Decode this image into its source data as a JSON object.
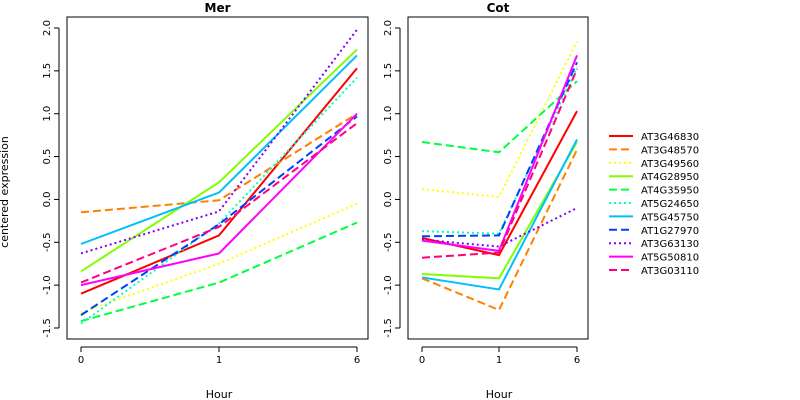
{
  "chart_data": {
    "type": "line",
    "ylabel": "centered expression",
    "xlabel": "Hour",
    "x_ticks": [
      "0",
      "1",
      "6"
    ],
    "ylim": [
      -1.5,
      2.0
    ],
    "y_ticks": [
      "-1.5",
      "-1.0",
      "-0.5",
      "0.0",
      "0.5",
      "1.0",
      "1.5",
      "2.0"
    ],
    "grid": false,
    "legend_position": "right",
    "series_styles": [
      {
        "name": "AT3G46830",
        "color": "#ff0000",
        "dash": "solid"
      },
      {
        "name": "AT3G48570",
        "color": "#ff8000",
        "dash": "dashed"
      },
      {
        "name": "AT3G49560",
        "color": "#ffff00",
        "dash": "dotted"
      },
      {
        "name": "AT4G28950",
        "color": "#80ff00",
        "dash": "solid"
      },
      {
        "name": "AT4G35950",
        "color": "#00ff40",
        "dash": "dashed"
      },
      {
        "name": "AT5G24650",
        "color": "#00ffbf",
        "dash": "dotted"
      },
      {
        "name": "AT5G45750",
        "color": "#00bfff",
        "dash": "solid"
      },
      {
        "name": "AT1G27970",
        "color": "#0040ff",
        "dash": "dashed"
      },
      {
        "name": "AT3G63130",
        "color": "#8000ff",
        "dash": "dotted"
      },
      {
        "name": "AT5G50810",
        "color": "#ff00ff",
        "dash": "solid"
      },
      {
        "name": "AT3G03110",
        "color": "#ff0080",
        "dash": "dashed"
      }
    ],
    "panels": [
      {
        "title": "Mer",
        "series": [
          {
            "name": "AT3G46830",
            "values": [
              -1.1,
              -0.42,
              1.53
            ]
          },
          {
            "name": "AT3G48570",
            "values": [
              -0.15,
              -0.01,
              1.0
            ]
          },
          {
            "name": "AT3G49560",
            "values": [
              -1.32,
              -0.75,
              -0.05
            ]
          },
          {
            "name": "AT4G28950",
            "values": [
              -0.84,
              0.2,
              1.75
            ]
          },
          {
            "name": "AT4G35950",
            "values": [
              -1.42,
              -0.97,
              -0.27
            ]
          },
          {
            "name": "AT5G24650",
            "values": [
              -1.45,
              -0.28,
              1.42
            ]
          },
          {
            "name": "AT5G45750",
            "values": [
              -0.52,
              0.08,
              1.68
            ]
          },
          {
            "name": "AT1G27970",
            "values": [
              -1.35,
              -0.29,
              0.97
            ]
          },
          {
            "name": "AT3G63130",
            "values": [
              -0.63,
              -0.14,
              1.98
            ]
          },
          {
            "name": "AT5G50810",
            "values": [
              -1.0,
              -0.63,
              1.0
            ]
          },
          {
            "name": "AT3G03110",
            "values": [
              -0.97,
              -0.32,
              0.89
            ]
          }
        ]
      },
      {
        "title": "Cot",
        "series": [
          {
            "name": "AT3G46830",
            "values": [
              -0.45,
              -0.65,
              1.03
            ]
          },
          {
            "name": "AT3G48570",
            "values": [
              -0.92,
              -1.29,
              0.58
            ]
          },
          {
            "name": "AT3G49560",
            "values": [
              0.12,
              0.03,
              1.84
            ]
          },
          {
            "name": "AT4G28950",
            "values": [
              -0.87,
              -0.92,
              0.67
            ]
          },
          {
            "name": "AT4G35950",
            "values": [
              0.67,
              0.55,
              1.38
            ]
          },
          {
            "name": "AT5G24650",
            "values": [
              -0.37,
              -0.4,
              1.54
            ]
          },
          {
            "name": "AT5G45750",
            "values": [
              -0.91,
              -1.05,
              0.7
            ]
          },
          {
            "name": "AT1G27970",
            "values": [
              -0.43,
              -0.42,
              1.6
            ]
          },
          {
            "name": "AT3G63130",
            "values": [
              -0.47,
              -0.55,
              -0.1
            ]
          },
          {
            "name": "AT5G50810",
            "values": [
              -0.48,
              -0.6,
              1.68
            ]
          },
          {
            "name": "AT3G03110",
            "values": [
              -0.68,
              -0.62,
              1.52
            ]
          }
        ]
      }
    ]
  }
}
